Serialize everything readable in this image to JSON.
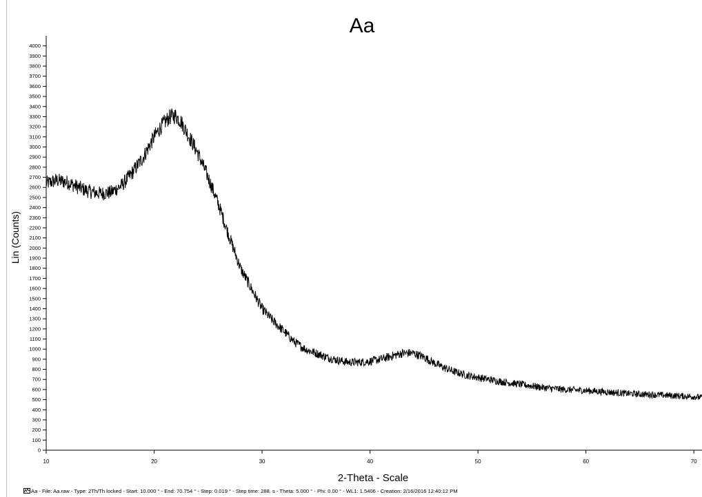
{
  "chart_data": {
    "type": "line",
    "title": "Aa",
    "xlabel": "2-Theta - Scale",
    "ylabel": "Lin (Counts)",
    "xlim": [
      10,
      70.754
    ],
    "ylim": [
      0,
      4100
    ],
    "x_ticks": [
      10,
      20,
      30,
      40,
      50,
      60,
      70
    ],
    "y_ticks": [
      0,
      100,
      200,
      300,
      400,
      500,
      600,
      700,
      800,
      900,
      1000,
      1100,
      1200,
      1300,
      1400,
      1500,
      1600,
      1700,
      1800,
      1900,
      2000,
      2100,
      2200,
      2300,
      2400,
      2500,
      2600,
      2700,
      2800,
      2900,
      3000,
      3100,
      3200,
      3300,
      3400,
      3500,
      3600,
      3700,
      3800,
      3900,
      4000
    ],
    "grid": false,
    "series": [
      {
        "color": "#000000",
        "noise_amplitude": 60,
        "x": [
          10,
          11,
          12,
          13,
          14,
          15,
          16,
          17,
          18,
          19,
          20,
          20.5,
          21,
          21.5,
          22,
          22.5,
          23,
          24,
          25,
          26,
          27,
          28,
          29,
          30,
          31,
          32,
          33,
          34,
          35,
          36,
          37,
          38,
          39,
          40,
          41,
          42,
          43,
          44,
          45,
          46,
          47,
          48,
          49,
          50,
          52,
          54,
          56,
          58,
          60,
          62,
          64,
          66,
          68,
          70,
          70.754
        ],
        "y": [
          2640,
          2670,
          2650,
          2600,
          2560,
          2540,
          2550,
          2620,
          2750,
          2900,
          3100,
          3180,
          3250,
          3300,
          3310,
          3250,
          3150,
          2950,
          2700,
          2420,
          2100,
          1800,
          1600,
          1400,
          1280,
          1180,
          1070,
          1000,
          960,
          920,
          890,
          870,
          870,
          880,
          900,
          930,
          960,
          960,
          920,
          860,
          810,
          770,
          740,
          720,
          680,
          650,
          620,
          600,
          590,
          575,
          560,
          550,
          540,
          530,
          520
        ]
      }
    ]
  },
  "footer": {
    "legend_icon": "pattern-swatch-icon",
    "text": "Aa - File: Aa.raw - Type: 2Th/Th locked - Start: 10.000 ° - End: 70.754 ° - Step: 0.019 ° - Step time: 288. s - Theta: 5.000 ° - Phi: 0.00 ° - WL1: 1.5406 - Creation: 2/16/2016 12:40:12 PM"
  }
}
